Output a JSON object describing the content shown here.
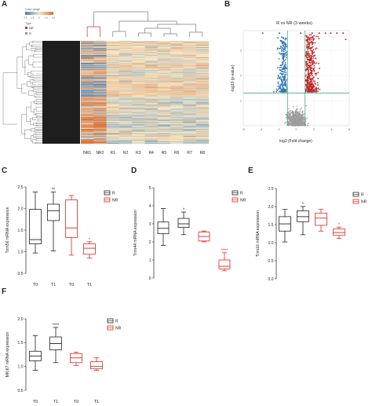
{
  "panels": {
    "A": {
      "letter": "A",
      "legend": {
        "color_range_title": "Color range",
        "color_range_ticks": [
          "-3.6",
          "-1.5",
          "0",
          "1.5",
          "3.6"
        ],
        "type_title": "Type",
        "type_items": [
          {
            "label": "NR",
            "color": "#e0281e"
          },
          {
            "label": "R",
            "color": "#9a9a9a"
          }
        ]
      },
      "columns": [
        "NR1",
        "NR2",
        "R1",
        "R2",
        "R3",
        "R4",
        "R5",
        "R6",
        "R7",
        "R8"
      ],
      "colors": {
        "low": "#3c7fc0",
        "mid": "#f6e7c4",
        "high": "#e26c2c",
        "tree_red": "#e0281e"
      }
    },
    "B": {
      "letter": "B",
      "title": "R vs NR (3 weeks)",
      "xlabel": "log2 (Fold change)",
      "ylabel": "-log10 (p-value)",
      "xticks": [
        "-6",
        "-4",
        "-2",
        "0",
        "2",
        "4",
        "6"
      ],
      "yticks": [
        "1",
        "2",
        "3"
      ],
      "colors": {
        "down": "#3174b8",
        "up": "#c0282a",
        "ns": "#9e9e9e",
        "threshold": "#2aa36b"
      }
    },
    "C": {
      "letter": "C"
    },
    "D": {
      "letter": "D"
    },
    "E": {
      "letter": "E"
    },
    "F": {
      "letter": "F"
    }
  },
  "chart_data": [
    {
      "type": "heatmap",
      "panel": "A",
      "columns": [
        "NR1",
        "NR2",
        "R1",
        "R2",
        "R3",
        "R4",
        "R5",
        "R6",
        "R7",
        "R8"
      ],
      "color_range": [
        -3.6,
        3.6
      ],
      "groups": {
        "NR": [
          "NR1",
          "NR2"
        ],
        "R": [
          "R1",
          "R2",
          "R3",
          "R4",
          "R5",
          "R6",
          "R7",
          "R8"
        ]
      }
    },
    {
      "type": "scatter",
      "panel": "B",
      "title": "R vs NR (3 weeks)",
      "xlabel": "log2 (Fold change)",
      "ylabel": "-log10 (p-value)",
      "xlim": [
        -6,
        6
      ],
      "ylim": [
        0,
        3.8
      ],
      "thresholds": {
        "fold_change_log2": [
          -1,
          1
        ]
      },
      "series": [
        {
          "name": "down",
          "color": "#3174b8"
        },
        {
          "name": "up",
          "color": "#c0282a"
        },
        {
          "name": "ns",
          "color": "#9e9e9e"
        }
      ]
    },
    {
      "type": "box",
      "panel": "C",
      "ylabel": "Trim56 mRNA expression",
      "ylim": [
        0.5,
        2.5
      ],
      "yticks": [
        0.5,
        1.0,
        1.5,
        2.0,
        2.5
      ],
      "categories": [
        "T0",
        "T1",
        "T0",
        "T1"
      ],
      "groups": [
        "R",
        "R",
        "NR",
        "NR"
      ],
      "boxes": [
        {
          "min": 0.97,
          "q1": 1.18,
          "median": 1.28,
          "q3": 1.98,
          "max": 2.38
        },
        {
          "min": 1.02,
          "q1": 1.72,
          "median": 1.95,
          "q3": 2.1,
          "max": 2.38
        },
        {
          "min": 0.92,
          "q1": 1.33,
          "median": 1.55,
          "q3": 2.2,
          "max": 2.3
        },
        {
          "min": 0.85,
          "q1": 0.94,
          "median": 1.08,
          "q3": 1.18,
          "max": 1.23
        }
      ],
      "annotations": [
        "",
        "**",
        "",
        "*"
      ],
      "legend": [
        "R",
        "NR"
      ]
    },
    {
      "type": "box",
      "panel": "D",
      "ylabel": "Trim44 mRNA expression",
      "ylim": [
        0,
        5
      ],
      "yticks": [
        0,
        1,
        2,
        3,
        4,
        5
      ],
      "categories": [
        "T0",
        "T1",
        "T0",
        "T1"
      ],
      "groups": [
        "R",
        "R",
        "NR",
        "NR"
      ],
      "boxes": [
        {
          "min": 1.8,
          "q1": 2.45,
          "median": 2.75,
          "q3": 3.1,
          "max": 3.85
        },
        {
          "min": 2.4,
          "q1": 2.8,
          "median": 3.0,
          "q3": 3.3,
          "max": 3.65
        },
        {
          "min": 2.0,
          "q1": 2.05,
          "median": 2.3,
          "q3": 2.55,
          "max": 2.6
        },
        {
          "min": 0.4,
          "q1": 0.5,
          "median": 0.65,
          "q3": 1.0,
          "max": 1.4
        }
      ],
      "annotations": [
        "",
        "*",
        "",
        "****"
      ],
      "legend": [
        "R",
        "NR"
      ]
    },
    {
      "type": "box",
      "panel": "E",
      "ylabel": "Trim16 mRNA expression",
      "ylim": [
        0,
        2.5
      ],
      "yticks": [
        0.0,
        0.5,
        1.0,
        1.5,
        2.0,
        2.5
      ],
      "categories": [
        "T0",
        "T1",
        "T0",
        "T1"
      ],
      "groups": [
        "R",
        "R",
        "NR",
        "NR"
      ],
      "boxes": [
        {
          "min": 1.02,
          "q1": 1.32,
          "median": 1.52,
          "q3": 1.72,
          "max": 1.92
        },
        {
          "min": 1.22,
          "q1": 1.58,
          "median": 1.72,
          "q3": 1.88,
          "max": 2.0
        },
        {
          "min": 1.32,
          "q1": 1.48,
          "median": 1.68,
          "q3": 1.82,
          "max": 1.92
        },
        {
          "min": 1.12,
          "q1": 1.2,
          "median": 1.28,
          "q3": 1.38,
          "max": 1.43
        }
      ],
      "annotations": [
        "",
        "*",
        "",
        "*"
      ],
      "legend": [
        "R",
        "NR"
      ]
    },
    {
      "type": "box",
      "panel": "F",
      "ylabel": "MKi67 mRNA expression",
      "ylim": [
        0.5,
        2.0
      ],
      "yticks": [
        0.5,
        1.0,
        1.5,
        2.0
      ],
      "categories": [
        "T0",
        "T1",
        "T0",
        "T1"
      ],
      "groups": [
        "R",
        "R",
        "NR",
        "NR"
      ],
      "boxes": [
        {
          "min": 0.92,
          "q1": 1.12,
          "median": 1.22,
          "q3": 1.32,
          "max": 1.65
        },
        {
          "min": 1.08,
          "q1": 1.35,
          "median": 1.48,
          "q3": 1.62,
          "max": 1.82
        },
        {
          "min": 1.02,
          "q1": 1.08,
          "median": 1.18,
          "q3": 1.27,
          "max": 1.3
        },
        {
          "min": 0.92,
          "q1": 0.95,
          "median": 1.0,
          "q3": 1.1,
          "max": 1.18
        }
      ],
      "annotations": [
        "",
        "****",
        "",
        ""
      ],
      "legend": [
        "R",
        "NR"
      ]
    }
  ]
}
